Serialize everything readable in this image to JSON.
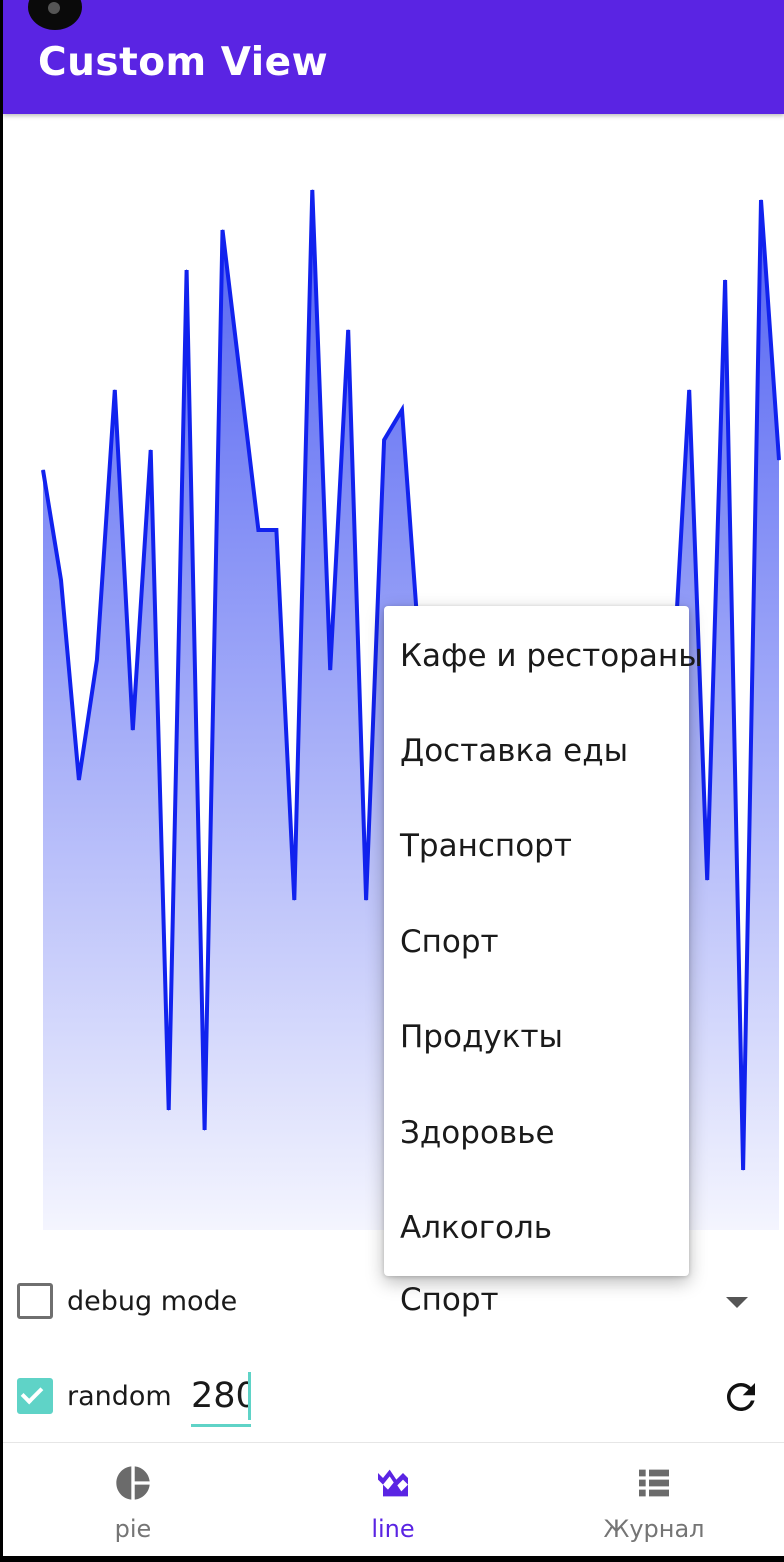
{
  "app": {
    "title": "Custom View"
  },
  "chart_data": {
    "type": "area",
    "x": [
      0,
      1,
      2,
      3,
      4,
      5,
      6,
      7,
      8,
      9,
      10,
      11,
      12,
      13,
      14,
      15,
      16,
      17,
      18,
      19,
      20,
      21,
      22,
      23,
      24,
      25,
      26,
      27,
      28,
      29,
      30,
      31,
      32,
      33,
      34,
      35,
      36,
      37,
      38,
      39,
      40,
      41
    ],
    "values": [
      760,
      650,
      450,
      570,
      840,
      500,
      780,
      120,
      960,
      100,
      1000,
      850,
      700,
      700,
      330,
      1040,
      560,
      900,
      330,
      790,
      820,
      570,
      540,
      530,
      530,
      530,
      520,
      510,
      500,
      490,
      480,
      460,
      450,
      520,
      520,
      520,
      840,
      350,
      950,
      60,
      1030,
      770
    ],
    "ylim": [
      0,
      1090
    ],
    "colors": {
      "line": "#1122ee",
      "fill_top": "#5060f2",
      "fill_bottom": "#f4f5fe"
    }
  },
  "dropdown": {
    "options": [
      "Кафе и рестораны",
      "Доставка еды",
      "Транспорт",
      "Спорт",
      "Продукты",
      "Здоровье",
      "Алкоголь"
    ],
    "selected": "Спорт"
  },
  "controls": {
    "debug_label": "debug mode",
    "debug_checked": false,
    "random_label": "random",
    "random_checked": true,
    "count_value": "280",
    "refresh_icon": "refresh-icon"
  },
  "nav": {
    "items": [
      {
        "label": "pie",
        "icon": "pie-chart-icon",
        "active": false
      },
      {
        "label": "line",
        "icon": "line-chart-icon",
        "active": true
      },
      {
        "label": "Журнал",
        "icon": "list-icon",
        "active": false
      }
    ]
  },
  "colors": {
    "primary": "#5a24e3",
    "accent": "#5fd3c7"
  }
}
